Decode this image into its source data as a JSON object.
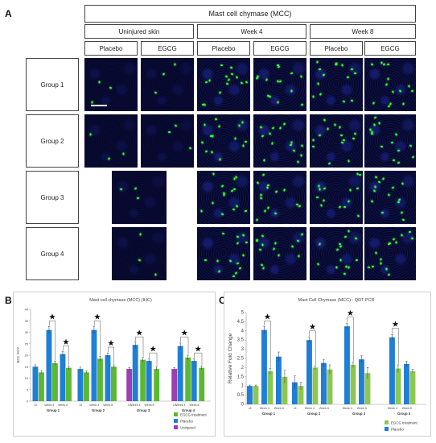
{
  "panels": {
    "a": "A",
    "b": "B",
    "c": "C"
  },
  "header": {
    "title": "Mast cell chymase (MCC)",
    "timepoints": [
      "Uninjured skin",
      "Week 4",
      "Week 8"
    ],
    "treatments": [
      "Placebo",
      "EGCG",
      "Placebo",
      "EGCG",
      "Placebo",
      "EGCG"
    ],
    "groups": [
      "Group 1",
      "Group 2",
      "Group 3",
      "Group 4"
    ]
  },
  "micrograph_colors": {
    "nuclei": "#1f2fa8",
    "mcc": "#39ff3c",
    "background": "#06082a"
  },
  "chart_data": [
    {
      "type": "bar",
      "title": "Mast cell chymase (MCC) (IHC)",
      "ylabel": "MCC /mm²",
      "ylim": [
        0,
        40
      ],
      "yticks": [
        0,
        5,
        10,
        15,
        20,
        25,
        30,
        35,
        40
      ],
      "groups": [
        "Group 1",
        "Group 2",
        "Group 3",
        "Group 4"
      ],
      "bars": [
        {
          "group": 0,
          "label": "UI",
          "color": "#1f7fd6",
          "value": 15,
          "err": 0.8
        },
        {
          "group": 0,
          "label": "",
          "color": "#5cb832",
          "value": 12.5,
          "err": 0.7
        },
        {
          "group": 0,
          "label": "Week 4",
          "color": "#1f7fd6",
          "value": 31,
          "err": 1.5
        },
        {
          "group": 0,
          "label": "",
          "color": "#5cb832",
          "value": 16.5,
          "err": 1.0
        },
        {
          "group": 0,
          "label": "Week 8",
          "color": "#1f7fd6",
          "value": 20.5,
          "err": 1.0
        },
        {
          "group": 0,
          "label": "",
          "color": "#5cb832",
          "value": 14.5,
          "err": 0.8
        },
        {
          "group": 1,
          "label": "UI",
          "color": "#1f7fd6",
          "value": 14,
          "err": 0.8
        },
        {
          "group": 1,
          "label": "",
          "color": "#5cb832",
          "value": 12.5,
          "err": 0.6
        },
        {
          "group": 1,
          "label": "Week 4",
          "color": "#1f7fd6",
          "value": 31,
          "err": 1.6
        },
        {
          "group": 1,
          "label": "",
          "color": "#5cb832",
          "value": 18.5,
          "err": 1.0
        },
        {
          "group": 1,
          "label": "Week 8",
          "color": "#1f7fd6",
          "value": 20,
          "err": 1.0
        },
        {
          "group": 1,
          "label": "",
          "color": "#5cb832",
          "value": 15,
          "err": 0.8
        },
        {
          "group": 2,
          "label": "UI",
          "color": "#9b3fb5",
          "value": 14,
          "err": 0.6
        },
        {
          "group": 2,
          "label": "Week 4",
          "color": "#1f7fd6",
          "value": 24.5,
          "err": 1.2
        },
        {
          "group": 2,
          "label": "",
          "color": "#5cb832",
          "value": 18,
          "err": 1.0
        },
        {
          "group": 2,
          "label": "Week 8",
          "color": "#1f7fd6",
          "value": 17.5,
          "err": 0.9
        },
        {
          "group": 2,
          "label": "",
          "color": "#5cb832",
          "value": 14,
          "err": 0.8
        },
        {
          "group": 3,
          "label": "UI",
          "color": "#9b3fb5",
          "value": 14,
          "err": 0.6
        },
        {
          "group": 3,
          "label": "Week 4",
          "color": "#1f7fd6",
          "value": 24,
          "err": 1.3
        },
        {
          "group": 3,
          "label": "",
          "color": "#5cb832",
          "value": 19,
          "err": 1.0
        },
        {
          "group": 3,
          "label": "Week 8",
          "color": "#1f7fd6",
          "value": 17.5,
          "err": 0.9
        },
        {
          "group": 3,
          "label": "",
          "color": "#5cb832",
          "value": 14.5,
          "err": 0.8
        }
      ],
      "significance": [
        {
          "from": 2,
          "to": 3,
          "y": 35
        },
        {
          "from": 4,
          "to": 5,
          "y": 24
        },
        {
          "from": 8,
          "to": 9,
          "y": 35
        },
        {
          "from": 10,
          "to": 11,
          "y": 23.5
        },
        {
          "from": 13,
          "to": 14,
          "y": 28
        },
        {
          "from": 15,
          "to": 16,
          "y": 21
        },
        {
          "from": 18,
          "to": 19,
          "y": 28
        },
        {
          "from": 20,
          "to": 21,
          "y": 21
        }
      ],
      "legend": [
        {
          "label": "EGCG treatment",
          "color": "#5cb832"
        },
        {
          "label": "Placebo",
          "color": "#1f7fd6"
        },
        {
          "label": "Uninjured",
          "color": "#9b3fb5"
        }
      ]
    },
    {
      "type": "bar",
      "title": "Mast Cell Chymase (MCC) - QRT-PCR",
      "ylabel": "Relative Fold Change",
      "ylim": [
        0,
        5
      ],
      "yticks": [
        0,
        0.5,
        1,
        1.5,
        2,
        2.5,
        3,
        3.5,
        4,
        4.5,
        5
      ],
      "yticklabels": [
        "0",
        "0.5",
        "1",
        "1.5",
        "2",
        "2.5",
        "3",
        "3.5",
        "4",
        "4.5",
        "5"
      ],
      "groups": [
        "Group 1",
        "Group 2",
        "Group 3",
        "Group 4"
      ],
      "bars": [
        {
          "group": 0,
          "label": "UI",
          "color": "#1f7fd6",
          "value": 1.0,
          "err": 0.05
        },
        {
          "group": 0,
          "label": "",
          "color": "#8dc653",
          "value": 1.0,
          "err": 0.05
        },
        {
          "group": 0,
          "label": "Week 4",
          "color": "#1f7fd6",
          "value": 4.05,
          "err": 0.2
        },
        {
          "group": 0,
          "label": "",
          "color": "#8dc653",
          "value": 1.8,
          "err": 0.15
        },
        {
          "group": 0,
          "label": "Week 8",
          "color": "#1f7fd6",
          "value": 2.6,
          "err": 0.25
        },
        {
          "group": 0,
          "label": "",
          "color": "#8dc653",
          "value": 1.5,
          "err": 0.35
        },
        {
          "group": 1,
          "label": "UI",
          "color": "#1f7fd6",
          "value": 1.2,
          "err": 0.35
        },
        {
          "group": 1,
          "label": "",
          "color": "#8dc653",
          "value": 1.0,
          "err": 0.2
        },
        {
          "group": 1,
          "label": "Week 4",
          "color": "#1f7fd6",
          "value": 3.5,
          "err": 0.15
        },
        {
          "group": 1,
          "label": "",
          "color": "#8dc653",
          "value": 2.0,
          "err": 0.1
        },
        {
          "group": 1,
          "label": "Week 8",
          "color": "#1f7fd6",
          "value": 2.25,
          "err": 0.2
        },
        {
          "group": 1,
          "label": "",
          "color": "#8dc653",
          "value": 1.9,
          "err": 0.25
        },
        {
          "group": 2,
          "label": "Week 4",
          "color": "#1f7fd6",
          "value": 4.25,
          "err": 0.15
        },
        {
          "group": 2,
          "label": "",
          "color": "#8dc653",
          "value": 2.15,
          "err": 0.15
        },
        {
          "group": 2,
          "label": "Week 8",
          "color": "#1f7fd6",
          "value": 2.45,
          "err": 0.2
        },
        {
          "group": 2,
          "label": "",
          "color": "#8dc653",
          "value": 1.7,
          "err": 0.3
        },
        {
          "group": 3,
          "label": "Week 4",
          "color": "#1f7fd6",
          "value": 3.65,
          "err": 0.15
        },
        {
          "group": 3,
          "label": "",
          "color": "#8dc653",
          "value": 1.95,
          "err": 0.2
        },
        {
          "group": 3,
          "label": "Week 8",
          "color": "#1f7fd6",
          "value": 2.2,
          "err": 0.15
        },
        {
          "group": 3,
          "label": "",
          "color": "#8dc653",
          "value": 1.8,
          "err": 0.1
        }
      ],
      "significance": [
        {
          "from": 2,
          "to": 3,
          "y": 4.55
        },
        {
          "from": 8,
          "to": 9,
          "y": 4.0
        },
        {
          "from": 12,
          "to": 13,
          "y": 4.75
        },
        {
          "from": 16,
          "to": 17,
          "y": 4.15
        }
      ],
      "legend": [
        {
          "label": "EGCG treatment",
          "color": "#8dc653"
        },
        {
          "label": "Placebo",
          "color": "#1f7fd6"
        }
      ]
    }
  ]
}
